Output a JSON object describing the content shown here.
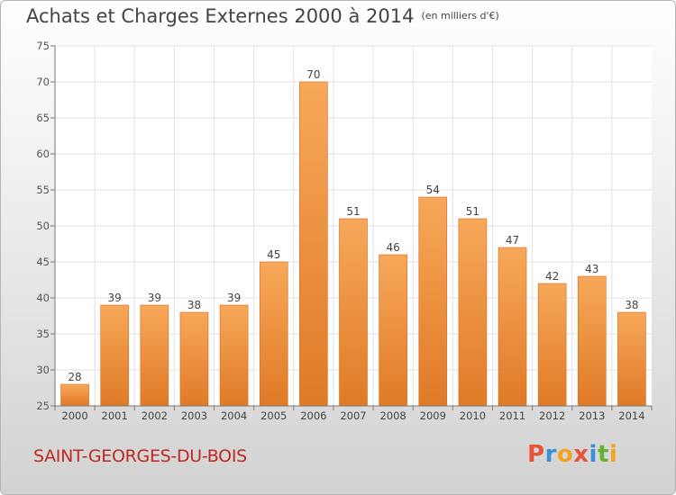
{
  "header": {
    "title": "Achats et Charges Externes 2000 à 2014",
    "unit": "(en milliers d'€)"
  },
  "footer": {
    "commune": "SAINT-GEORGES-DU-BOIS",
    "logo_text": "Proxiti",
    "logo_colors": [
      "#e8543a",
      "#3a8fd6",
      "#f2a51a",
      "#e8543a",
      "#3a8fd6",
      "#66b032",
      "#f2a51a"
    ]
  },
  "chart_data": {
    "type": "bar",
    "categories": [
      "2000",
      "2001",
      "2002",
      "2003",
      "2004",
      "2005",
      "2006",
      "2007",
      "2008",
      "2009",
      "2010",
      "2011",
      "2012",
      "2013",
      "2014"
    ],
    "values": [
      28,
      39,
      39,
      38,
      39,
      45,
      70,
      51,
      46,
      54,
      51,
      47,
      42,
      43,
      38
    ],
    "ylim": [
      25,
      75
    ],
    "yticks": [
      25,
      30,
      35,
      40,
      45,
      50,
      55,
      60,
      65,
      70,
      75
    ],
    "grid": true,
    "bar_color_light": "#f7a85a",
    "bar_color_dark": "#e07a26",
    "bar_edge_color": "#d9691b"
  }
}
